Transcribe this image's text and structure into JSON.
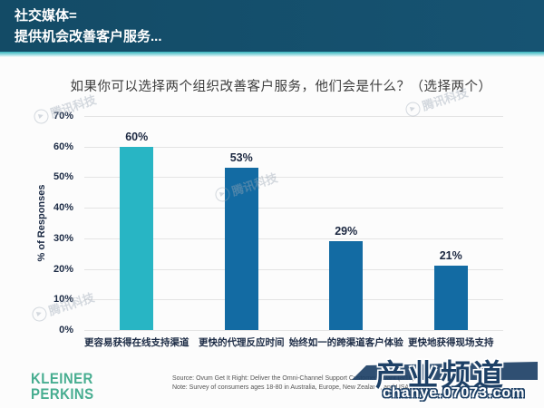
{
  "header": {
    "title_line1": "社交媒体=",
    "title_line2": "提供机会改善客户服务...",
    "bg_color": "#14506e",
    "accent_color": "#35b4bd"
  },
  "chart_data": {
    "type": "bar",
    "title": "如果你可以选择两个组织改善客户服务，他们会是什么？（选择两个）",
    "xlabel": "",
    "ylabel": "% of Responses",
    "ylim": [
      0,
      70
    ],
    "ytick_step": 10,
    "ytick_labels": [
      "0%",
      "10%",
      "20%",
      "30%",
      "40%",
      "50%",
      "60%",
      "70%"
    ],
    "grid": true,
    "legend": false,
    "categories": [
      "更容易获得在线支持渠道",
      "更快的代理反应时间",
      "始终如一的跨渠道客户体验",
      "更快地获得现场支持"
    ],
    "values": [
      60,
      53,
      29,
      21
    ],
    "value_labels": [
      "60%",
      "53%",
      "29%",
      "21%"
    ],
    "bar_colors": [
      "#28b5c4",
      "#136ba3",
      "#136ba3",
      "#136ba3"
    ]
  },
  "footer": {
    "logo_line1": "KLEINER",
    "logo_line2": "PERKINS",
    "logo_color": "#47ad90",
    "source_line1": "Source: Ovum Get It Right: Deliver the Omni-Channel Support Customers Want (8/16)",
    "source_line2": "Note: Survey of consumers ages 18-80 in Australia, Europe, New Zealand, and USA, n=400."
  },
  "watermarks": {
    "tencent_text": "腾讯科技",
    "play_glyph": "▶",
    "site_name": "产业频道",
    "site_url": "chanye.07073.com"
  }
}
